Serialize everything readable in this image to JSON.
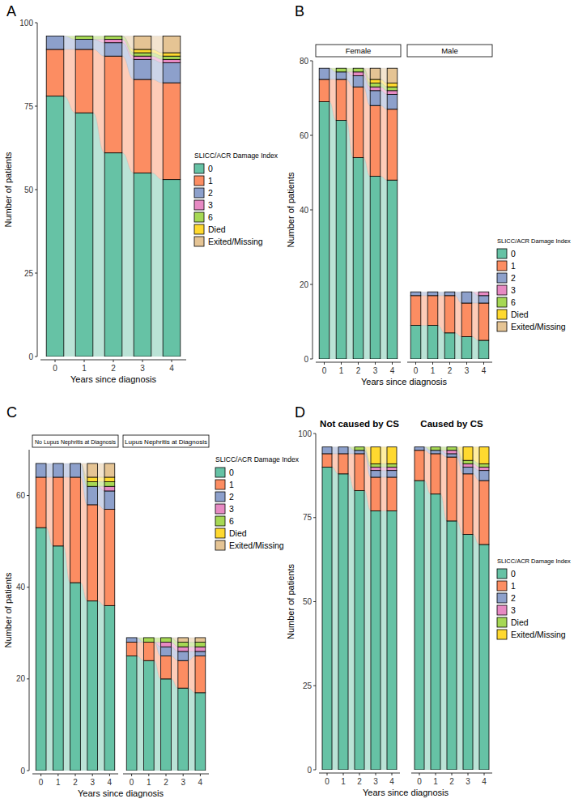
{
  "chart_data": [
    {
      "type": "bar",
      "stacked": true,
      "legend": "right",
      "title": "A",
      "x_label": "Years since diagnosis",
      "y_label": "Number of patients",
      "legend_title": "SLICC/ACR Damage Index",
      "categories": [
        "0",
        "1",
        "2",
        "3",
        "4"
      ],
      "ylim": [
        0,
        100
      ],
      "yticks": [
        0,
        25,
        50,
        75,
        100
      ],
      "series": [
        {
          "name": "0",
          "color": "#66c2a5"
        },
        {
          "name": "1",
          "color": "#fc8d62"
        },
        {
          "name": "2",
          "color": "#8da0cb"
        },
        {
          "name": "3",
          "color": "#e78ac3"
        },
        {
          "name": "6",
          "color": "#a6d854"
        },
        {
          "name": "Died",
          "color": "#ffd92f"
        },
        {
          "name": "Exited/Missing",
          "color": "#e5c494"
        }
      ],
      "facets": [
        {
          "values": [
            [
              78,
              73,
              61,
              55,
              53
            ],
            [
              14,
              19,
              29,
              28,
              29
            ],
            [
              4,
              3,
              4,
              6,
              6
            ],
            [
              0,
              0,
              1,
              1,
              1
            ],
            [
              0,
              1,
              1,
              1,
              1
            ],
            [
              0,
              0,
              0,
              1,
              1
            ],
            [
              0,
              0,
              0,
              4,
              5
            ]
          ]
        }
      ]
    },
    {
      "type": "bar",
      "stacked": true,
      "legend": "right",
      "title": "B",
      "x_label": "Years since diagnosis",
      "y_label": "Number of patients",
      "legend_title": "SLICC/ACR Damage Index",
      "categories": [
        "0",
        "1",
        "2",
        "3",
        "4"
      ],
      "ylim": [
        0,
        80
      ],
      "yticks": [
        0,
        20,
        40,
        60,
        80
      ],
      "series": [
        {
          "name": "0",
          "color": "#66c2a5"
        },
        {
          "name": "1",
          "color": "#fc8d62"
        },
        {
          "name": "2",
          "color": "#8da0cb"
        },
        {
          "name": "3",
          "color": "#e78ac3"
        },
        {
          "name": "6",
          "color": "#a6d854"
        },
        {
          "name": "Died",
          "color": "#ffd92f"
        },
        {
          "name": "Exited/Missing",
          "color": "#e5c494"
        }
      ],
      "facets": [
        {
          "title": "Female",
          "values": [
            [
              69,
              64,
              54,
              49,
              48
            ],
            [
              6,
              11,
              19,
              19,
              19
            ],
            [
              3,
              2,
              3,
              4,
              4
            ],
            [
              0,
              0,
              1,
              1,
              1
            ],
            [
              0,
              1,
              1,
              1,
              1
            ],
            [
              0,
              0,
              0,
              1,
              1
            ],
            [
              0,
              0,
              0,
              3,
              4
            ]
          ]
        },
        {
          "title": "Male",
          "values": [
            [
              9,
              9,
              7,
              6,
              5
            ],
            [
              8,
              8,
              10,
              9,
              10
            ],
            [
              1,
              1,
              1,
              3,
              2
            ],
            [
              0,
              0,
              0,
              0,
              1
            ],
            [
              0,
              0,
              0,
              0,
              0
            ],
            [
              0,
              0,
              0,
              0,
              0
            ],
            [
              0,
              0,
              0,
              0,
              0
            ]
          ]
        }
      ]
    },
    {
      "type": "bar",
      "stacked": true,
      "legend": "right",
      "title": "C",
      "x_label": "Years since diagnosis",
      "y_label": "Number of patients",
      "legend_title": "SLICC/ACR Damage Index",
      "categories": [
        "0",
        "1",
        "2",
        "3",
        "4"
      ],
      "ylim": [
        0,
        70
      ],
      "yticks": [
        0,
        20,
        40,
        60
      ],
      "series": [
        {
          "name": "0",
          "color": "#66c2a5"
        },
        {
          "name": "1",
          "color": "#fc8d62"
        },
        {
          "name": "2",
          "color": "#8da0cb"
        },
        {
          "name": "3",
          "color": "#e78ac3"
        },
        {
          "name": "6",
          "color": "#a6d854"
        },
        {
          "name": "Died",
          "color": "#ffd92f"
        },
        {
          "name": "Exited/Missing",
          "color": "#e5c494"
        }
      ],
      "facets": [
        {
          "title": "No Lupus Nephritis at Diagnosis",
          "values": [
            [
              53,
              49,
              41,
              37,
              36
            ],
            [
              11,
              15,
              23,
              21,
              21
            ],
            [
              3,
              3,
              3,
              4,
              4
            ],
            [
              0,
              0,
              0,
              0,
              1
            ],
            [
              0,
              0,
              0,
              1,
              1
            ],
            [
              0,
              0,
              0,
              1,
              1
            ],
            [
              0,
              0,
              0,
              3,
              3
            ]
          ]
        },
        {
          "title": "Lupus Nephritis at Diagnosis",
          "values": [
            [
              25,
              24,
              20,
              18,
              17
            ],
            [
              3,
              4,
              5,
              6,
              8
            ],
            [
              1,
              0,
              2,
              2,
              1
            ],
            [
              0,
              0,
              1,
              1,
              1
            ],
            [
              0,
              1,
              1,
              1,
              1
            ],
            [
              0,
              0,
              0,
              0,
              0
            ],
            [
              0,
              0,
              0,
              1,
              1
            ]
          ]
        }
      ]
    },
    {
      "type": "bar",
      "stacked": true,
      "legend": "right",
      "title": "D",
      "x_label": "Years since diagnosis",
      "y_label": "Number of patients",
      "legend_title": "SLICC/ACR Damage Index",
      "categories": [
        "0",
        "1",
        "2",
        "3",
        "4"
      ],
      "ylim": [
        0,
        100
      ],
      "yticks": [
        0,
        25,
        50,
        75,
        100
      ],
      "series": [
        {
          "name": "0",
          "color": "#66c2a5"
        },
        {
          "name": "1",
          "color": "#fc8d62"
        },
        {
          "name": "2",
          "color": "#8da0cb"
        },
        {
          "name": "3",
          "color": "#e78ac3"
        },
        {
          "name": "Died",
          "color": "#a6d854"
        },
        {
          "name": "Exited/Missing",
          "color": "#ffd92f"
        }
      ],
      "facets": [
        {
          "title": "Not caused by CS",
          "values": [
            [
              90,
              88,
              83,
              77,
              77
            ],
            [
              4,
              6,
              11,
              10,
              10
            ],
            [
              2,
              2,
              1,
              2,
              2
            ],
            [
              0,
              0,
              0,
              1,
              1
            ],
            [
              0,
              0,
              1,
              1,
              1
            ],
            [
              0,
              0,
              0,
              5,
              5
            ]
          ]
        },
        {
          "title": "Caused by CS",
          "values": [
            [
              86,
              82,
              74,
              70,
              67
            ],
            [
              9,
              12,
              19,
              18,
              19
            ],
            [
              1,
              1,
              1,
              2,
              3
            ],
            [
              0,
              0,
              1,
              1,
              1
            ],
            [
              0,
              1,
              1,
              1,
              1
            ],
            [
              0,
              0,
              0,
              4,
              5
            ]
          ]
        }
      ]
    }
  ]
}
